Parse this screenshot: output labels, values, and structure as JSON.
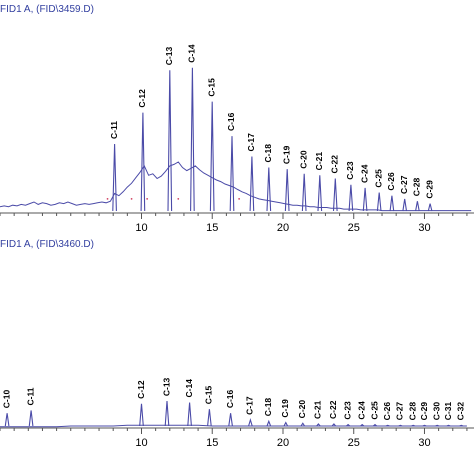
{
  "chart_data": [
    {
      "type": "line",
      "title": "FID1 A,  (FID\\3459.D)",
      "xlim": [
        0,
        33.5
      ],
      "x_ticks": [
        10,
        15,
        20,
        25,
        30
      ],
      "colors": {
        "trace": "#4b4ba8",
        "axis": "#555555",
        "label": "#000000",
        "title": "#3340a0",
        "marker": "#d04060"
      },
      "series": [
        {
          "x": [
            0,
            0.3,
            0.6,
            0.9,
            1.2,
            1.5,
            1.8,
            2.1,
            2.4,
            2.7,
            3.0,
            3.3,
            3.6,
            3.9,
            4.2,
            4.5,
            4.8,
            5.1,
            5.4,
            5.7,
            6.0,
            6.3,
            6.6,
            6.9,
            7.2,
            7.5,
            7.8,
            8.1,
            8.4,
            8.7,
            9.0,
            9.3,
            9.6,
            9.9,
            10.2,
            10.5,
            10.8,
            11.1,
            11.4,
            11.7,
            12.0,
            12.3,
            12.6,
            12.9,
            13.2,
            13.5,
            13.8,
            14.1,
            14.4,
            14.7,
            15.0,
            15.3,
            15.6,
            15.9,
            16.2,
            16.5,
            16.8,
            17.1,
            17.4,
            17.7,
            18.0,
            18.3,
            18.6,
            18.9,
            19.2,
            19.5,
            19.8,
            20.1,
            20.4,
            20.7,
            21.0,
            21.3,
            21.6,
            21.9,
            22.2,
            22.5,
            22.8,
            23.1,
            23.4,
            23.7,
            24.0,
            24.3,
            24.6,
            24.9,
            25.2,
            25.5,
            25.8,
            26.1,
            26.4,
            26.7,
            27.0,
            27.3,
            27.6,
            27.9,
            28.2,
            28.5,
            28.8,
            29.1,
            29.4,
            29.7,
            30.0,
            30.3,
            30.6,
            30.9,
            31.2,
            31.5,
            31.8,
            32.1,
            32.4,
            32.7,
            33.0,
            33.3
          ],
          "y": [
            8,
            9,
            8,
            10,
            9,
            11,
            10,
            12,
            14,
            11,
            13,
            12,
            10,
            11,
            13,
            12,
            14,
            12,
            10,
            11,
            12,
            11,
            12,
            13,
            14,
            13,
            15,
            25,
            22,
            27,
            33,
            38,
            45,
            52,
            60,
            48,
            50,
            44,
            47,
            53,
            60,
            62,
            65,
            58,
            54,
            57,
            60,
            55,
            51,
            48,
            45,
            42,
            40,
            37,
            35,
            33,
            30,
            27,
            25,
            22,
            20,
            18,
            17,
            16,
            15,
            14,
            13,
            12,
            11,
            10,
            10,
            9,
            9,
            8,
            8,
            7,
            7,
            7,
            6,
            6,
            6,
            5,
            5,
            5,
            5,
            4,
            4,
            4,
            4,
            4,
            3,
            3,
            3,
            3,
            3,
            3,
            3,
            3,
            3,
            3,
            3,
            3,
            3,
            3,
            3,
            3,
            3,
            3,
            3,
            3,
            3,
            3
          ]
        }
      ],
      "peaks": [
        {
          "label": "C-11",
          "x": 8.1,
          "y": 88
        },
        {
          "label": "C-12",
          "x": 10.1,
          "y": 128
        },
        {
          "label": "C-13",
          "x": 12.0,
          "y": 182
        },
        {
          "label": "C-14",
          "x": 13.6,
          "y": 185
        },
        {
          "label": "C-15",
          "x": 15.0,
          "y": 142
        },
        {
          "label": "C-16",
          "x": 16.4,
          "y": 98
        },
        {
          "label": "C-17",
          "x": 17.8,
          "y": 72
        },
        {
          "label": "C-18",
          "x": 19.0,
          "y": 58
        },
        {
          "label": "C-19",
          "x": 20.3,
          "y": 56
        },
        {
          "label": "C-20",
          "x": 21.5,
          "y": 50
        },
        {
          "label": "C-21",
          "x": 22.6,
          "y": 48
        },
        {
          "label": "C-22",
          "x": 23.7,
          "y": 44
        },
        {
          "label": "C-23",
          "x": 24.8,
          "y": 36
        },
        {
          "label": "C-24",
          "x": 25.8,
          "y": 32
        },
        {
          "label": "C-25",
          "x": 26.8,
          "y": 26
        },
        {
          "label": "C-26",
          "x": 27.7,
          "y": 22
        },
        {
          "label": "C-27",
          "x": 28.6,
          "y": 18
        },
        {
          "label": "C-28",
          "x": 29.5,
          "y": 15
        },
        {
          "label": "C-29",
          "x": 30.4,
          "y": 12
        }
      ],
      "ylim": [
        0,
        195
      ]
    },
    {
      "type": "line",
      "title": "FID1 A,  (FID\\3460.D)",
      "xlim": [
        0,
        33.5
      ],
      "x_ticks": [
        10,
        15,
        20,
        25,
        30
      ],
      "colors": {
        "trace": "#4b4ba8",
        "axis": "#555555",
        "label": "#000000",
        "title": "#3340a0"
      },
      "series": [
        {
          "x": [
            0,
            1,
            2,
            3,
            4,
            5,
            6,
            7,
            8,
            9,
            10,
            11,
            12,
            13,
            14,
            15,
            16,
            17,
            18,
            19,
            20,
            21,
            22,
            23,
            24,
            25,
            26,
            27,
            28,
            29,
            30,
            31,
            32,
            33
          ],
          "y": [
            2,
            2,
            2,
            2,
            2,
            3,
            3,
            3,
            3,
            4,
            4,
            4,
            4,
            4,
            4,
            3,
            3,
            3,
            3,
            3,
            3,
            3,
            3,
            3,
            3,
            3,
            3,
            3,
            3,
            3,
            3,
            3,
            3,
            3
          ]
        }
      ],
      "peaks": [
        {
          "label": "C-10",
          "x": 0.5,
          "y": 22
        },
        {
          "label": "C-11",
          "x": 2.2,
          "y": 26
        },
        {
          "label": "C-12",
          "x": 10.0,
          "y": 36
        },
        {
          "label": "C-13",
          "x": 11.8,
          "y": 40
        },
        {
          "label": "C-14",
          "x": 13.4,
          "y": 38
        },
        {
          "label": "C-15",
          "x": 14.8,
          "y": 28
        },
        {
          "label": "C-16",
          "x": 16.3,
          "y": 22
        },
        {
          "label": "C-17",
          "x": 17.7,
          "y": 12
        },
        {
          "label": "C-18",
          "x": 19.0,
          "y": 10
        },
        {
          "label": "C-19",
          "x": 20.2,
          "y": 8
        },
        {
          "label": "C-20",
          "x": 21.4,
          "y": 7
        },
        {
          "label": "C-21",
          "x": 22.5,
          "y": 6
        },
        {
          "label": "C-22",
          "x": 23.6,
          "y": 6
        },
        {
          "label": "C-23",
          "x": 24.6,
          "y": 5
        },
        {
          "label": "C-24",
          "x": 25.6,
          "y": 5
        },
        {
          "label": "C-25",
          "x": 26.5,
          "y": 5
        },
        {
          "label": "C-26",
          "x": 27.4,
          "y": 4
        },
        {
          "label": "C-27",
          "x": 28.3,
          "y": 4
        },
        {
          "label": "C-28",
          "x": 29.2,
          "y": 4
        },
        {
          "label": "C-29",
          "x": 30.0,
          "y": 4
        },
        {
          "label": "C-30",
          "x": 30.9,
          "y": 4
        },
        {
          "label": "C-31",
          "x": 31.7,
          "y": 4
        },
        {
          "label": "C-32",
          "x": 32.6,
          "y": 4
        }
      ],
      "ylim": [
        0,
        195
      ]
    }
  ]
}
